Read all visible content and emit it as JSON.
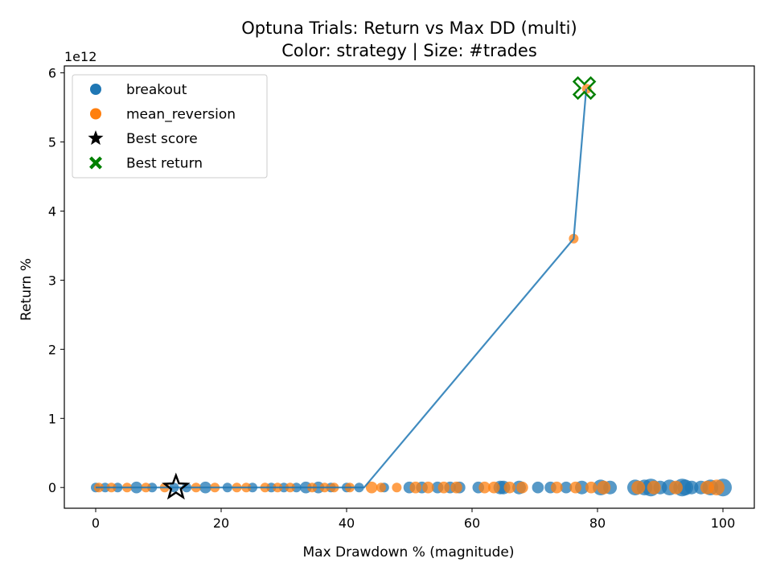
{
  "chart_data": {
    "type": "scatter",
    "title": "Optuna Trials: Return vs Max DD (multi)",
    "subtitle": "Color: strategy | Size: #trades",
    "xlabel": "Max Drawdown % (magnitude)",
    "ylabel": "Return %",
    "y_offset_label": "1e12",
    "xlim": [
      -5,
      105
    ],
    "ylim": [
      -0.3,
      6.1
    ],
    "y_scale_factor": 1000000000000.0,
    "x_ticks": [
      0,
      20,
      40,
      60,
      80,
      100
    ],
    "x_tick_labels": [
      "0",
      "20",
      "40",
      "60",
      "80",
      "100"
    ],
    "y_ticks": [
      0,
      1,
      2,
      3,
      4,
      5,
      6
    ],
    "y_tick_labels": [
      "0",
      "1",
      "2",
      "3",
      "4",
      "5",
      "6"
    ],
    "grid": false,
    "legend_position": "top-left",
    "colors": {
      "breakout": "#1f77b4",
      "mean_reversion": "#ff7f0e",
      "best_score": "#000000",
      "best_return": "#008000",
      "frontier": "#1f77b4"
    },
    "legend": [
      {
        "label": "breakout",
        "marker": "circle",
        "color": "#1f77b4"
      },
      {
        "label": "mean_reversion",
        "marker": "circle",
        "color": "#ff7f0e"
      },
      {
        "label": "Best score",
        "marker": "star",
        "color": "#000000"
      },
      {
        "label": "Best return",
        "marker": "x",
        "color": "#008000"
      }
    ],
    "series": [
      {
        "name": "breakout",
        "color": "#1f77b4",
        "points": [
          [
            0,
            0,
            2
          ],
          [
            1.5,
            0,
            2
          ],
          [
            3.5,
            0,
            2
          ],
          [
            6.5,
            0,
            3
          ],
          [
            9,
            0,
            2
          ],
          [
            12.5,
            0,
            2
          ],
          [
            14.5,
            0,
            2
          ],
          [
            17.5,
            0,
            3
          ],
          [
            21,
            0,
            2
          ],
          [
            25,
            0,
            2
          ],
          [
            28,
            0,
            2
          ],
          [
            30,
            0,
            2
          ],
          [
            32,
            0,
            2
          ],
          [
            33.5,
            0,
            3
          ],
          [
            35.5,
            0,
            3
          ],
          [
            37.5,
            0,
            2
          ],
          [
            40,
            0,
            2
          ],
          [
            42,
            0,
            2
          ],
          [
            46,
            0,
            2
          ],
          [
            50,
            0,
            3
          ],
          [
            52,
            0,
            3
          ],
          [
            54.5,
            0,
            3
          ],
          [
            56.5,
            0,
            3
          ],
          [
            58,
            0,
            3
          ],
          [
            61,
            0,
            3
          ],
          [
            64.5,
            0,
            4
          ],
          [
            65,
            0,
            4
          ],
          [
            67.5,
            0,
            4
          ],
          [
            70.5,
            0,
            3
          ],
          [
            72.5,
            0,
            3
          ],
          [
            75,
            0,
            3
          ],
          [
            77.5,
            0,
            4
          ],
          [
            80.5,
            0,
            5
          ],
          [
            82,
            0,
            4
          ],
          [
            86,
            0,
            5
          ],
          [
            87.5,
            0,
            5
          ],
          [
            88.5,
            0,
            6
          ],
          [
            90,
            0,
            4
          ],
          [
            91.5,
            0,
            5
          ],
          [
            93.5,
            0,
            6
          ],
          [
            94,
            0,
            5
          ],
          [
            95,
            0,
            4
          ],
          [
            96.5,
            0,
            4
          ],
          [
            98,
            0,
            5
          ],
          [
            100,
            0,
            6
          ]
        ]
      },
      {
        "name": "mean_reversion",
        "color": "#ff7f0e",
        "points": [
          [
            0.5,
            0,
            2
          ],
          [
            2.5,
            0,
            2
          ],
          [
            5,
            0,
            2
          ],
          [
            8,
            0,
            2
          ],
          [
            11,
            0,
            2
          ],
          [
            16,
            0,
            2
          ],
          [
            19,
            0,
            2
          ],
          [
            22.5,
            0,
            2
          ],
          [
            24,
            0,
            2
          ],
          [
            27,
            0,
            2
          ],
          [
            29,
            0,
            2
          ],
          [
            31,
            0,
            2
          ],
          [
            34.5,
            0,
            2
          ],
          [
            36.5,
            0,
            2
          ],
          [
            38,
            0,
            2
          ],
          [
            40.5,
            0,
            2
          ],
          [
            44,
            0,
            3
          ],
          [
            45.5,
            0,
            2
          ],
          [
            48,
            0,
            2
          ],
          [
            51,
            0,
            3
          ],
          [
            53,
            0,
            3
          ],
          [
            55.5,
            0,
            3
          ],
          [
            57.5,
            0,
            3
          ],
          [
            62,
            0,
            3
          ],
          [
            63.5,
            0,
            3
          ],
          [
            66,
            0,
            3
          ],
          [
            68,
            0,
            3
          ],
          [
            73.5,
            0,
            3
          ],
          [
            76.5,
            0,
            3
          ],
          [
            79,
            0,
            3
          ],
          [
            81,
            0,
            4
          ],
          [
            86.5,
            0,
            4
          ],
          [
            89,
            0,
            4
          ],
          [
            92.5,
            0,
            4
          ],
          [
            97.5,
            0,
            4
          ],
          [
            99,
            0,
            5
          ],
          [
            76.2,
            3.6,
            2
          ],
          [
            78.3,
            5.77,
            2
          ]
        ]
      }
    ],
    "frontier": {
      "name": "frontier",
      "x": [
        0,
        42.8,
        76.2,
        78.2
      ],
      "y": [
        0,
        0,
        3.6,
        5.77
      ]
    },
    "best_score": {
      "x": 12.8,
      "y": 0
    },
    "best_return": {
      "x": 77.9,
      "y": 5.78
    }
  }
}
